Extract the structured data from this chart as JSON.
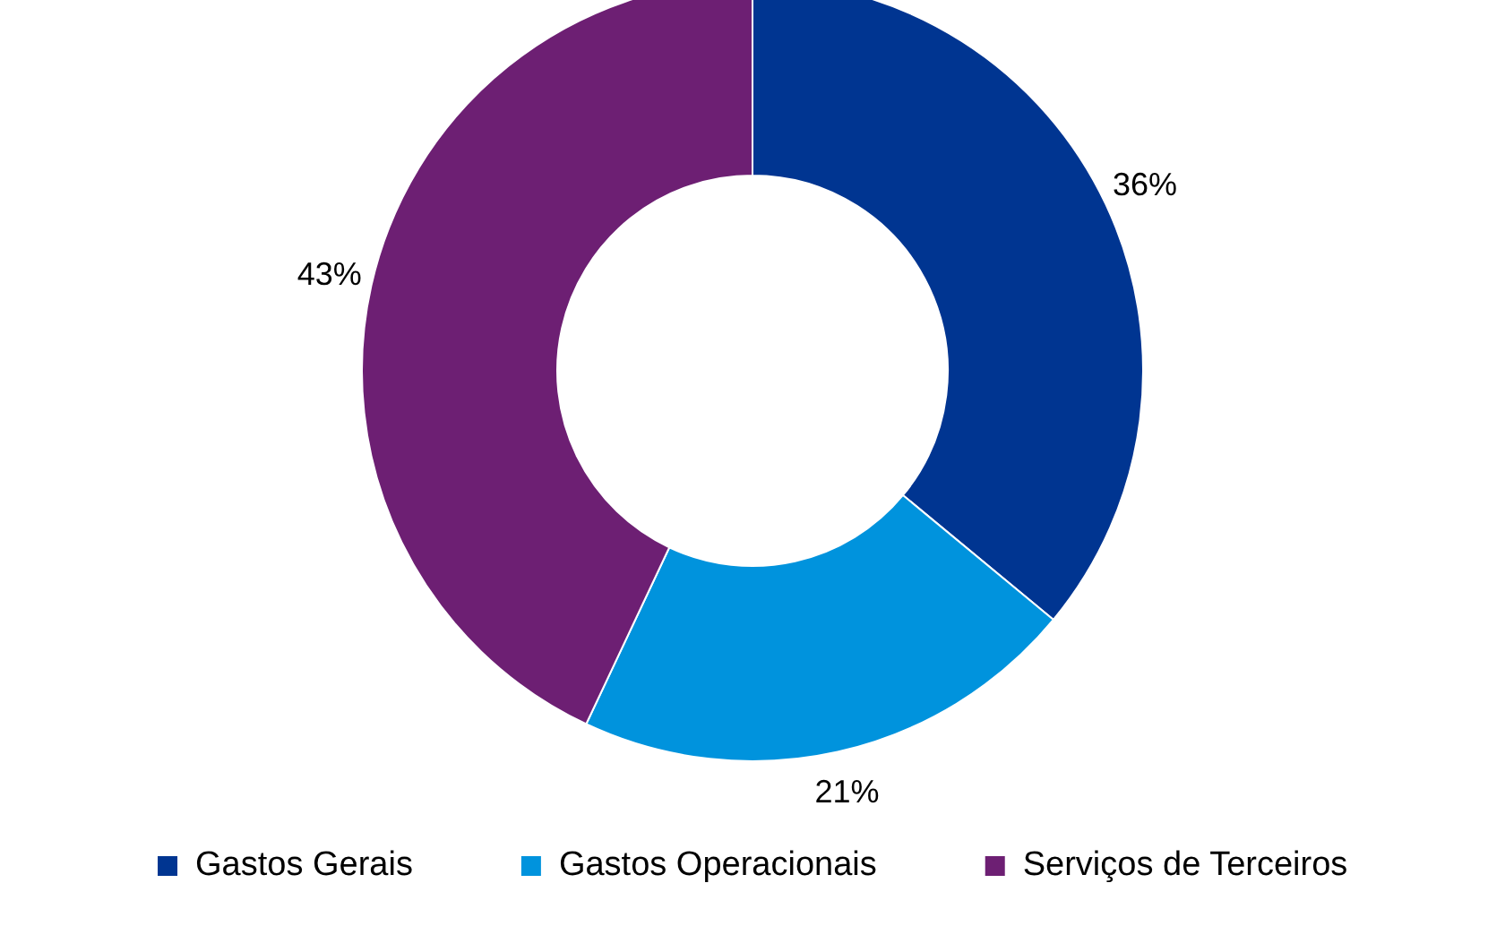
{
  "chart_data": {
    "type": "donut",
    "categories": [
      "Gastos Gerais",
      "Gastos Operacionais",
      "Serviços de Terceiros"
    ],
    "values": [
      36,
      21,
      43
    ],
    "colors": [
      "#003591",
      "#0093dd",
      "#6d1f73"
    ],
    "value_labels": [
      "36%",
      "21%",
      "43%"
    ],
    "legend": "bottom"
  }
}
